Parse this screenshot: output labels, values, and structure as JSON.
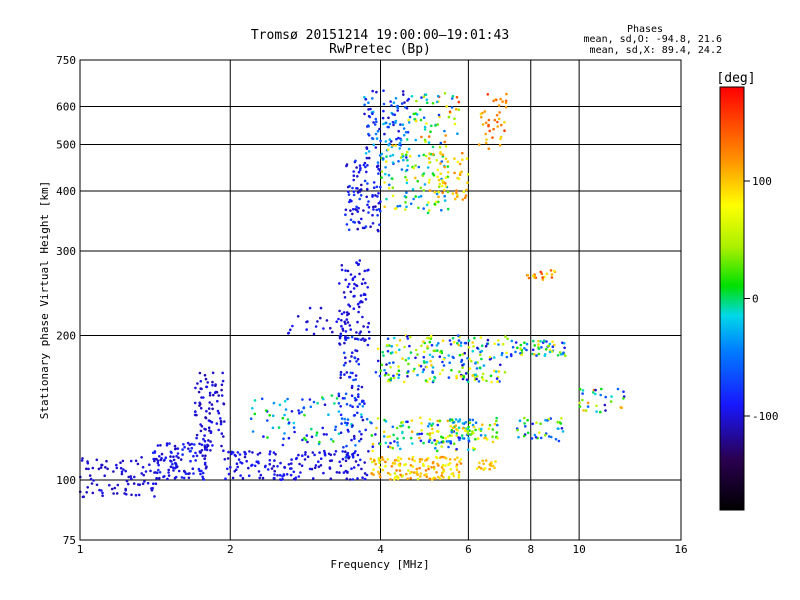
{
  "chart_data": {
    "type": "scatter",
    "title": "Tromsø 20151214 19:00:00–19:01:43",
    "subtitle": "RwPretec (Bp)",
    "xlabel": "Frequency [MHz]",
    "ylabel": "Stationary phase Virtual Height [km]",
    "x_scale": "log",
    "y_scale": "log",
    "xlim": [
      1,
      16
    ],
    "ylim": [
      75,
      750
    ],
    "x_ticks": [
      1,
      2,
      4,
      6,
      8,
      10,
      16
    ],
    "x_tick_labels": [
      "1",
      "2",
      "4",
      "6",
      "8",
      "10",
      "16"
    ],
    "y_ticks": [
      75,
      100,
      200,
      300,
      400,
      500,
      600,
      750
    ],
    "y_tick_labels": [
      "75",
      "100",
      "200",
      "300",
      "400",
      "500",
      "600",
      "750"
    ],
    "grid": true,
    "phase_box": {
      "title": "Phases",
      "line_o": "mean, sd,O: -94.8, 21.6",
      "line_x": "mean, sd,X:  89.4, 24.2"
    },
    "colorbar": {
      "label": "[deg]",
      "min": -180,
      "max": 180,
      "ticks": [
        100,
        0,
        -100
      ],
      "tick_labels": [
        "100",
        "0",
        "-100"
      ]
    },
    "clusters": [
      {
        "x": [
          1.0,
          1.45
        ],
        "y": [
          92,
          112
        ],
        "phase": [
          -110,
          -95
        ],
        "n": 90
      },
      {
        "x": [
          1.4,
          1.8
        ],
        "y": [
          100,
          120
        ],
        "phase": [
          -110,
          -80
        ],
        "n": 110
      },
      {
        "x": [
          1.7,
          1.95
        ],
        "y": [
          115,
          170
        ],
        "phase": [
          -115,
          -90
        ],
        "n": 90
      },
      {
        "x": [
          1.95,
          3.8
        ],
        "y": [
          100,
          115
        ],
        "phase": [
          -110,
          -85
        ],
        "n": 160
      },
      {
        "x": [
          2.2,
          3.8
        ],
        "y": [
          118,
          150
        ],
        "phase": [
          -105,
          20
        ],
        "n": 90
      },
      {
        "x": [
          2.6,
          3.3
        ],
        "y": [
          200,
          230
        ],
        "phase": [
          -110,
          -90
        ],
        "n": 20
      },
      {
        "x": [
          3.3,
          3.7
        ],
        "y": [
          110,
          200
        ],
        "phase": [
          -115,
          -60
        ],
        "n": 80
      },
      {
        "x": [
          3.3,
          3.8
        ],
        "y": [
          190,
          290
        ],
        "phase": [
          -110,
          -90
        ],
        "n": 90
      },
      {
        "x": [
          3.4,
          4.0
        ],
        "y": [
          330,
          470
        ],
        "phase": [
          -115,
          -70
        ],
        "n": 100
      },
      {
        "x": [
          3.7,
          4.6
        ],
        "y": [
          450,
          650
        ],
        "phase": [
          -110,
          -20
        ],
        "n": 110
      },
      {
        "x": [
          3.8,
          5.8
        ],
        "y": [
          100,
          112
        ],
        "phase": [
          60,
          130
        ],
        "n": 140
      },
      {
        "x": [
          3.8,
          6.2
        ],
        "y": [
          115,
          135
        ],
        "phase": [
          -100,
          110
        ],
        "n": 130
      },
      {
        "x": [
          3.9,
          7.2
        ],
        "y": [
          160,
          200
        ],
        "phase": [
          -110,
          100
        ],
        "n": 220
      },
      {
        "x": [
          4.0,
          5.5
        ],
        "y": [
          360,
          500
        ],
        "phase": [
          -60,
          110
        ],
        "n": 110
      },
      {
        "x": [
          4.5,
          5.8
        ],
        "y": [
          500,
          640
        ],
        "phase": [
          -80,
          160
        ],
        "n": 60
      },
      {
        "x": [
          5.0,
          6.0
        ],
        "y": [
          380,
          480
        ],
        "phase": [
          60,
          130
        ],
        "n": 50
      },
      {
        "x": [
          5.5,
          6.9
        ],
        "y": [
          120,
          135
        ],
        "phase": [
          -60,
          110
        ],
        "n": 60
      },
      {
        "x": [
          6.2,
          6.8
        ],
        "y": [
          105,
          110
        ],
        "phase": [
          80,
          120
        ],
        "n": 20
      },
      {
        "x": [
          6.3,
          7.2
        ],
        "y": [
          480,
          640
        ],
        "phase": [
          90,
          160
        ],
        "n": 40
      },
      {
        "x": [
          7.3,
          9.4
        ],
        "y": [
          180,
          195
        ],
        "phase": [
          -100,
          100
        ],
        "n": 60
      },
      {
        "x": [
          7.5,
          9.3
        ],
        "y": [
          120,
          135
        ],
        "phase": [
          -100,
          70
        ],
        "n": 40
      },
      {
        "x": [
          7.8,
          9.0
        ],
        "y": [
          260,
          275
        ],
        "phase": [
          80,
          160
        ],
        "n": 20
      },
      {
        "x": [
          10.0,
          12.5
        ],
        "y": [
          138,
          155
        ],
        "phase": [
          -110,
          130
        ],
        "n": 30
      }
    ]
  }
}
